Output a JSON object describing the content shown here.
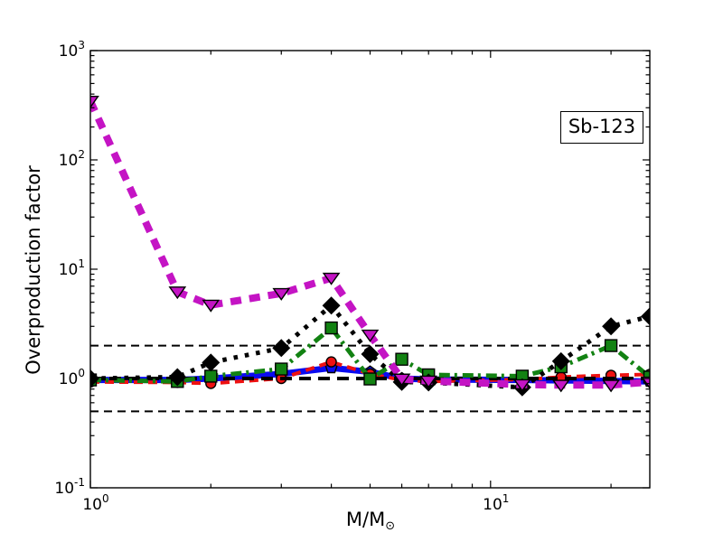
{
  "figure": {
    "background": "#ffffff",
    "annotation_label": "Sb-123",
    "xlabel_main": "M/M",
    "xlabel_sub": "⊙",
    "frame_color": "#000000"
  },
  "chart_data": {
    "type": "line",
    "title": "",
    "xlabel": "M/M⊙",
    "ylabel": "Overproduction factor",
    "xscale": "log",
    "yscale": "log",
    "xlim": [
      1,
      25
    ],
    "ylim": [
      0.1,
      1000
    ],
    "grid": false,
    "legend": "none",
    "annotation": "Sb-123",
    "x": [
      1.0,
      1.65,
      2.0,
      3.0,
      4.0,
      5.0,
      6.0,
      7.0,
      12.0,
      15.0,
      20.0,
      25.0
    ],
    "series": [
      {
        "name": "blue-solid-pentagon",
        "color": "#0a0af0",
        "linestyle": "solid",
        "linewidth": 7,
        "marker": "pentagon",
        "marker_size": 13,
        "values": [
          0.97,
          0.97,
          1.0,
          1.1,
          1.25,
          1.15,
          1.0,
          0.98,
          0.97,
          0.96,
          0.95,
          0.94
        ]
      },
      {
        "name": "red-dashed-circle",
        "color": "#ee1111",
        "linestyle": "dashed",
        "linewidth": 4,
        "marker": "circle",
        "marker_size": 11,
        "values": [
          0.93,
          0.92,
          0.9,
          1.0,
          1.42,
          1.1,
          0.97,
          0.94,
          0.98,
          1.03,
          1.07,
          1.09
        ]
      },
      {
        "name": "green-dashdot-square",
        "color": "#128212",
        "linestyle": "dashdot",
        "linewidth": 5,
        "marker": "square",
        "marker_size": 13,
        "values": [
          0.97,
          0.94,
          1.05,
          1.22,
          2.9,
          0.99,
          1.5,
          1.08,
          1.05,
          1.28,
          2.0,
          1.03
        ]
      },
      {
        "name": "black-dotted-diamond",
        "color": "#000000",
        "linestyle": "dotted",
        "linewidth": 5,
        "marker": "diamond",
        "marker_size": 18,
        "values": [
          1.0,
          1.03,
          1.4,
          1.9,
          4.65,
          1.67,
          0.93,
          0.92,
          0.83,
          1.44,
          3.0,
          3.7
        ]
      },
      {
        "name": "magenta-dashed-triangledown",
        "color": "#c414c4",
        "linestyle": "dashed",
        "linewidth": 8,
        "marker": "triangle-down",
        "marker_size": 17,
        "values": [
          345,
          6.2,
          4.7,
          6.0,
          8.3,
          2.5,
          0.99,
          0.95,
          0.88,
          0.87,
          0.87,
          0.93
        ]
      }
    ],
    "reference_lines": [
      {
        "value": 2.0,
        "color": "#000000",
        "style": "dashed",
        "linewidth": 2
      },
      {
        "value": 1.0,
        "color": "#000000",
        "style": "dashed",
        "linewidth": 4
      },
      {
        "value": 0.5,
        "color": "#000000",
        "style": "dashed",
        "linewidth": 2
      }
    ],
    "x_axis": {
      "major_ticks": [
        {
          "value": 1,
          "label_base": "10",
          "label_exp": "0"
        },
        {
          "value": 10,
          "label_base": "10",
          "label_exp": "1"
        }
      ],
      "minor_ticks": [
        2,
        3,
        4,
        5,
        6,
        7,
        8,
        9,
        20
      ]
    },
    "y_axis": {
      "major_ticks": [
        {
          "value": 1000,
          "label_base": "10",
          "label_exp": "3"
        },
        {
          "value": 100,
          "label_base": "10",
          "label_exp": "2"
        },
        {
          "value": 10,
          "label_base": "10",
          "label_exp": "1"
        },
        {
          "value": 1,
          "label_base": "10",
          "label_exp": "0"
        },
        {
          "value": 0.1,
          "label_base": "10",
          "label_exp": "-1"
        }
      ],
      "minor_ticks": [
        0.2,
        0.3,
        0.4,
        0.5,
        0.6,
        0.7,
        0.8,
        0.9,
        2,
        3,
        4,
        5,
        6,
        7,
        8,
        9,
        20,
        30,
        40,
        50,
        60,
        70,
        80,
        90,
        200,
        300,
        400,
        500,
        600,
        700,
        800,
        900
      ]
    }
  }
}
